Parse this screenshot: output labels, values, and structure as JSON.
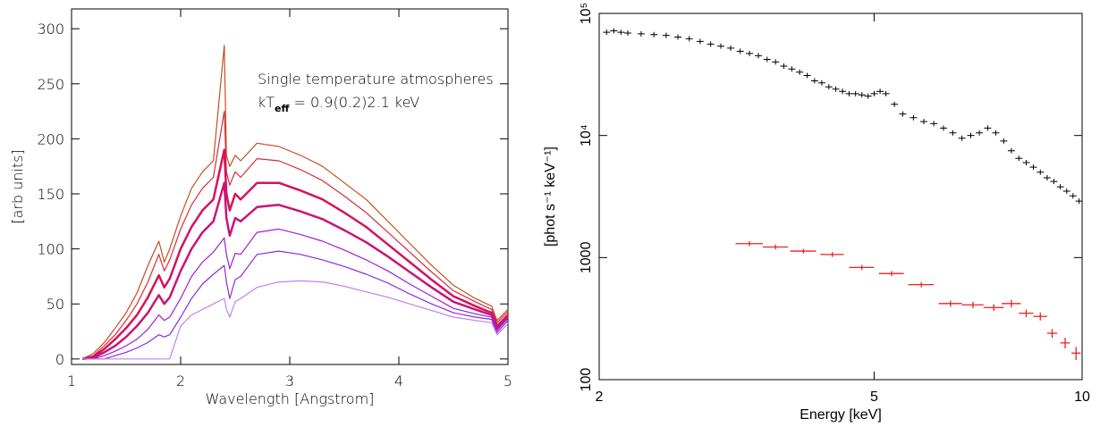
{
  "chart_data": [
    {
      "type": "line",
      "xlabel": "Wavelength [Angstrom]",
      "ylabel": "[arb units]",
      "annotation_lines": [
        [
          {
            "text": "Single temperature atmospheres"
          }
        ],
        [
          {
            "text": "kT"
          },
          {
            "text": "eff",
            "sub": true
          },
          {
            "text": " = 0.9(0.2)2.1 keV"
          }
        ]
      ],
      "xlim": [
        1,
        5
      ],
      "xticks": [
        1,
        2,
        3,
        4,
        5
      ],
      "ylim": [
        -5,
        318
      ],
      "yticks": [
        0,
        50,
        100,
        150,
        200,
        250,
        300
      ],
      "x": [
        1.1,
        1.2,
        1.3,
        1.4,
        1.5,
        1.6,
        1.7,
        1.8,
        1.85,
        1.9,
        2.0,
        2.1,
        2.2,
        2.3,
        2.4,
        2.42,
        2.45,
        2.5,
        2.55,
        2.7,
        2.9,
        3.1,
        3.3,
        3.5,
        3.7,
        3.9,
        4.1,
        4.3,
        4.5,
        4.7,
        4.85,
        4.9,
        5.0
      ],
      "series": [
        {
          "color": "#c4501e",
          "line_width": 1.2,
          "values": [
            0,
            5,
            15,
            28,
            42,
            60,
            85,
            107,
            88,
            100,
            130,
            155,
            170,
            180,
            285,
            185,
            175,
            185,
            180,
            196,
            193,
            185,
            175,
            160,
            145,
            125,
            105,
            85,
            67,
            55,
            48,
            35,
            45
          ]
        },
        {
          "color": "#dc2a3c",
          "line_width": 1.2,
          "values": [
            0,
            3,
            12,
            22,
            35,
            50,
            70,
            95,
            80,
            90,
            118,
            140,
            155,
            165,
            225,
            170,
            158,
            170,
            165,
            182,
            180,
            172,
            162,
            148,
            133,
            115,
            97,
            79,
            62,
            52,
            45,
            33,
            43
          ]
        },
        {
          "color": "#d4145a",
          "line_width": 2.5,
          "values": [
            0,
            2,
            9,
            18,
            28,
            40,
            56,
            76,
            65,
            73,
            100,
            120,
            135,
            145,
            190,
            150,
            135,
            150,
            145,
            160,
            160,
            153,
            145,
            133,
            120,
            104,
            88,
            72,
            57,
            48,
            42,
            30,
            40
          ]
        },
        {
          "color": "#c81478",
          "line_width": 2.5,
          "values": [
            0,
            1,
            6,
            12,
            20,
            30,
            42,
            58,
            50,
            56,
            80,
            100,
            115,
            125,
            160,
            128,
            112,
            128,
            125,
            138,
            140,
            134,
            127,
            117,
            106,
            93,
            79,
            65,
            52,
            45,
            40,
            28,
            38
          ]
        },
        {
          "color": "#a020d0",
          "line_width": 1.2,
          "values": [
            0,
            0,
            3,
            7,
            12,
            18,
            27,
            40,
            35,
            38,
            55,
            75,
            88,
            97,
            110,
            95,
            82,
            96,
            95,
            115,
            118,
            113,
            107,
            99,
            90,
            80,
            68,
            57,
            46,
            41,
            38,
            26,
            37
          ]
        },
        {
          "color": "#8a2be2",
          "line_width": 1.2,
          "values": [
            0,
            0,
            0,
            3,
            6,
            10,
            15,
            22,
            20,
            22,
            38,
            55,
            68,
            77,
            85,
            70,
            55,
            72,
            75,
            95,
            98,
            95,
            90,
            84,
            77,
            69,
            59,
            50,
            42,
            38,
            36,
            24,
            35
          ]
        },
        {
          "color": "#c080f0",
          "line_width": 1.2,
          "values": [
            0,
            0,
            0,
            0,
            0,
            0,
            0,
            0,
            0,
            0,
            30,
            40,
            45,
            50,
            55,
            45,
            38,
            52,
            55,
            65,
            70,
            71,
            70,
            66,
            61,
            56,
            50,
            44,
            38,
            35,
            33,
            22,
            32
          ]
        }
      ]
    },
    {
      "type": "scatter",
      "xlog": true,
      "ylog": true,
      "xlabel": "Energy [keV]",
      "ylabel": "[phot s⁻¹ keV⁻¹]",
      "xlim": [
        2,
        10
      ],
      "xticks": [
        2,
        5,
        10
      ],
      "ylim": [
        100,
        100000
      ],
      "yticks": [
        100,
        1000,
        {
          "value": 10000,
          "label": "10⁴"
        },
        {
          "value": 100000,
          "label": "10⁵"
        }
      ],
      "series": [
        {
          "color": "#000000",
          "x": [
            2.05,
            2.1,
            2.15,
            2.2,
            2.3,
            2.4,
            2.5,
            2.6,
            2.7,
            2.8,
            2.9,
            3.0,
            3.1,
            3.2,
            3.3,
            3.4,
            3.5,
            3.6,
            3.7,
            3.8,
            3.9,
            4.0,
            4.1,
            4.2,
            4.3,
            4.4,
            4.5,
            4.6,
            4.7,
            4.8,
            4.9,
            5.0,
            5.1,
            5.2,
            5.35,
            5.5,
            5.7,
            5.9,
            6.1,
            6.3,
            6.5,
            6.7,
            6.9,
            7.1,
            7.3,
            7.5,
            7.7,
            7.9,
            8.1,
            8.3,
            8.5,
            8.7,
            8.9,
            9.1,
            9.3,
            9.5,
            9.7,
            9.9
          ],
          "values": [
            70000,
            72000,
            70000,
            69000,
            68000,
            67000,
            66000,
            64000,
            62000,
            59000,
            56000,
            54000,
            52000,
            49000,
            47000,
            45000,
            42000,
            40000,
            37000,
            35000,
            33000,
            31000,
            28000,
            27000,
            25000,
            24000,
            23000,
            22000,
            22000,
            21500,
            21000,
            22000,
            23000,
            22000,
            18000,
            15000,
            14000,
            13000,
            12500,
            11500,
            10500,
            9500,
            10000,
            10500,
            11500,
            10500,
            9000,
            7500,
            6500,
            6000,
            5500,
            5000,
            4500,
            4200,
            3800,
            3500,
            3200,
            2900
          ]
        },
        {
          "color": "#e8231e",
          "x": [
            3.3,
            3.6,
            3.95,
            4.35,
            4.8,
            5.3,
            5.85,
            6.45,
            6.95,
            7.45,
            7.9,
            8.3,
            8.7,
            9.05,
            9.45,
            9.8
          ],
          "xerr": [
            0.15,
            0.15,
            0.17,
            0.17,
            0.2,
            0.22,
            0.25,
            0.25,
            0.25,
            0.25,
            0.25,
            0.2,
            0.2,
            0.15,
            0.15,
            0.15
          ],
          "values": [
            1300,
            1220,
            1130,
            1060,
            830,
            740,
            600,
            420,
            410,
            390,
            420,
            350,
            330,
            240,
            200,
            165
          ],
          "yerr": [
            60,
            55,
            50,
            50,
            40,
            35,
            30,
            25,
            25,
            25,
            30,
            25,
            25,
            20,
            20,
            20
          ]
        }
      ]
    }
  ]
}
